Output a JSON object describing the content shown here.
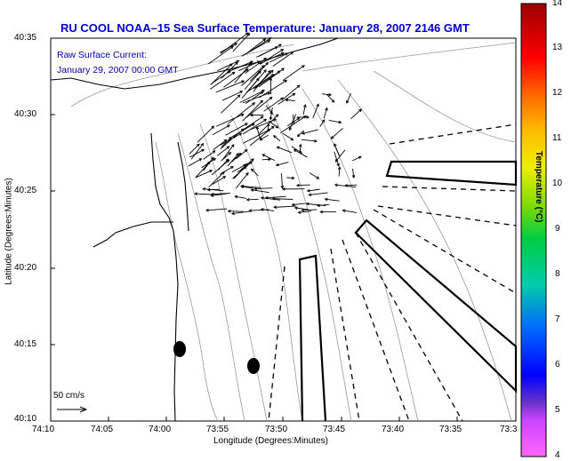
{
  "title": "RU COOL  NOAA–15  Sea Surface Temperature:  January 28, 2007 2146 GMT",
  "overlay": {
    "line1": "Raw Surface Current:",
    "line2": "January 29, 2007 00:00 GMT"
  },
  "axes": {
    "xlabel": "Longitude (Degrees:Minutes)",
    "ylabel": "Latitude (Degrees:Minutes)",
    "xticks": [
      "74:10",
      "74:05",
      "74:00",
      "73:55",
      "73:50",
      "73:45",
      "73:40",
      "73:35",
      "73:3"
    ],
    "yticks": [
      "40:35",
      "40:30",
      "40:25",
      "40:20",
      "40:15",
      "40:10"
    ]
  },
  "colorbar": {
    "label": "Temperature (°C)",
    "ticks": [
      "14",
      "13",
      "12",
      "11",
      "10",
      "9",
      "8",
      "7",
      "6",
      "5",
      "4"
    ],
    "min": 4,
    "max": 14
  },
  "scale_label": "50 cm/s",
  "colors": {
    "title": "#0000cc",
    "overlay": "#0000aa",
    "land": "#000000",
    "contours": "#999999"
  }
}
